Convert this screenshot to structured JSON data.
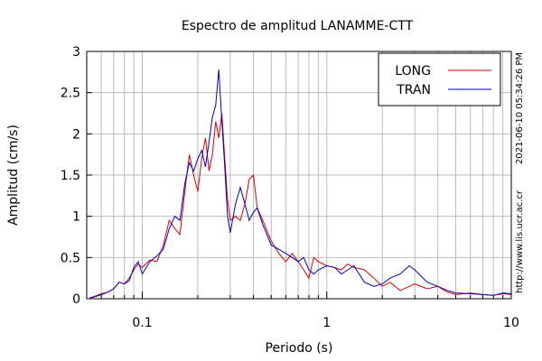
{
  "chart_data": {
    "type": "line",
    "title": "Espectro de amplitud LANAMME-CTT",
    "xlabel": "Periodo (s)",
    "ylabel": "Amplitud (cm/s)",
    "x_scale": "log",
    "xlim": [
      0.05,
      10
    ],
    "ylim": [
      0,
      3
    ],
    "grid": true,
    "legend_position": "top-right",
    "x_ticks": [
      {
        "value": 0.1,
        "label": "0.1"
      },
      {
        "value": 1,
        "label": "1"
      },
      {
        "value": 10,
        "label": "10"
      }
    ],
    "y_ticks": [
      {
        "value": 0,
        "label": "0"
      },
      {
        "value": 0.5,
        "label": "0.5"
      },
      {
        "value": 1,
        "label": "1"
      },
      {
        "value": 1.5,
        "label": "1.5"
      },
      {
        "value": 2,
        "label": "2"
      },
      {
        "value": 2.5,
        "label": "2.5"
      },
      {
        "value": 3,
        "label": "3"
      }
    ],
    "side_annotations": [
      "2021-06-10 05:34:26 PM",
      "http://www.lis.ucr.ac.cr"
    ],
    "series": [
      {
        "name": "LONG",
        "color": "#dd0000",
        "points": [
          [
            0.052,
            0.01
          ],
          [
            0.055,
            0.03
          ],
          [
            0.06,
            0.06
          ],
          [
            0.065,
            0.08
          ],
          [
            0.07,
            0.12
          ],
          [
            0.075,
            0.2
          ],
          [
            0.08,
            0.18
          ],
          [
            0.085,
            0.25
          ],
          [
            0.09,
            0.35
          ],
          [
            0.095,
            0.42
          ],
          [
            0.1,
            0.38
          ],
          [
            0.11,
            0.47
          ],
          [
            0.12,
            0.45
          ],
          [
            0.13,
            0.65
          ],
          [
            0.14,
            0.95
          ],
          [
            0.15,
            0.85
          ],
          [
            0.16,
            0.78
          ],
          [
            0.17,
            1.3
          ],
          [
            0.18,
            1.75
          ],
          [
            0.19,
            1.5
          ],
          [
            0.2,
            1.3
          ],
          [
            0.21,
            1.7
          ],
          [
            0.22,
            1.95
          ],
          [
            0.23,
            1.55
          ],
          [
            0.24,
            1.75
          ],
          [
            0.25,
            2.15
          ],
          [
            0.26,
            1.95
          ],
          [
            0.27,
            2.25
          ],
          [
            0.28,
            1.7
          ],
          [
            0.29,
            1.2
          ],
          [
            0.3,
            0.95
          ],
          [
            0.32,
            1.0
          ],
          [
            0.34,
            0.95
          ],
          [
            0.36,
            1.15
          ],
          [
            0.38,
            1.45
          ],
          [
            0.4,
            1.5
          ],
          [
            0.42,
            1.1
          ],
          [
            0.45,
            0.95
          ],
          [
            0.5,
            0.7
          ],
          [
            0.55,
            0.55
          ],
          [
            0.6,
            0.45
          ],
          [
            0.65,
            0.55
          ],
          [
            0.7,
            0.45
          ],
          [
            0.75,
            0.35
          ],
          [
            0.8,
            0.25
          ],
          [
            0.85,
            0.5
          ],
          [
            0.9,
            0.45
          ],
          [
            1.0,
            0.4
          ],
          [
            1.1,
            0.38
          ],
          [
            1.2,
            0.35
          ],
          [
            1.3,
            0.42
          ],
          [
            1.4,
            0.38
          ],
          [
            1.6,
            0.35
          ],
          [
            1.8,
            0.25
          ],
          [
            2.0,
            0.15
          ],
          [
            2.2,
            0.2
          ],
          [
            2.5,
            0.1
          ],
          [
            2.8,
            0.15
          ],
          [
            3.0,
            0.18
          ],
          [
            3.5,
            0.12
          ],
          [
            4.0,
            0.15
          ],
          [
            4.5,
            0.08
          ],
          [
            5.0,
            0.05
          ],
          [
            6.0,
            0.07
          ],
          [
            7.0,
            0.05
          ],
          [
            8.0,
            0.04
          ],
          [
            9.0,
            0.06
          ],
          [
            10.0,
            0.05
          ]
        ]
      },
      {
        "name": "TRAN",
        "color": "#0000cc",
        "points": [
          [
            0.052,
            0.01
          ],
          [
            0.055,
            0.02
          ],
          [
            0.06,
            0.05
          ],
          [
            0.065,
            0.08
          ],
          [
            0.07,
            0.12
          ],
          [
            0.075,
            0.2
          ],
          [
            0.08,
            0.18
          ],
          [
            0.085,
            0.22
          ],
          [
            0.09,
            0.38
          ],
          [
            0.095,
            0.45
          ],
          [
            0.1,
            0.3
          ],
          [
            0.11,
            0.45
          ],
          [
            0.12,
            0.52
          ],
          [
            0.13,
            0.6
          ],
          [
            0.14,
            0.85
          ],
          [
            0.15,
            1.0
          ],
          [
            0.16,
            0.95
          ],
          [
            0.17,
            1.4
          ],
          [
            0.18,
            1.65
          ],
          [
            0.19,
            1.55
          ],
          [
            0.2,
            1.7
          ],
          [
            0.21,
            1.8
          ],
          [
            0.22,
            1.6
          ],
          [
            0.23,
            1.9
          ],
          [
            0.24,
            2.2
          ],
          [
            0.25,
            2.35
          ],
          [
            0.26,
            2.78
          ],
          [
            0.27,
            2.15
          ],
          [
            0.28,
            1.6
          ],
          [
            0.29,
            1.0
          ],
          [
            0.3,
            0.8
          ],
          [
            0.32,
            1.15
          ],
          [
            0.34,
            1.35
          ],
          [
            0.36,
            1.15
          ],
          [
            0.38,
            0.95
          ],
          [
            0.4,
            1.05
          ],
          [
            0.42,
            1.1
          ],
          [
            0.45,
            0.9
          ],
          [
            0.5,
            0.65
          ],
          [
            0.55,
            0.6
          ],
          [
            0.6,
            0.55
          ],
          [
            0.65,
            0.5
          ],
          [
            0.7,
            0.45
          ],
          [
            0.75,
            0.5
          ],
          [
            0.8,
            0.35
          ],
          [
            0.85,
            0.3
          ],
          [
            0.9,
            0.35
          ],
          [
            1.0,
            0.4
          ],
          [
            1.1,
            0.38
          ],
          [
            1.2,
            0.3
          ],
          [
            1.3,
            0.35
          ],
          [
            1.4,
            0.4
          ],
          [
            1.6,
            0.2
          ],
          [
            1.8,
            0.15
          ],
          [
            2.0,
            0.18
          ],
          [
            2.2,
            0.25
          ],
          [
            2.5,
            0.3
          ],
          [
            2.8,
            0.4
          ],
          [
            3.0,
            0.35
          ],
          [
            3.5,
            0.2
          ],
          [
            4.0,
            0.15
          ],
          [
            4.5,
            0.1
          ],
          [
            5.0,
            0.07
          ],
          [
            6.0,
            0.06
          ],
          [
            7.0,
            0.05
          ],
          [
            8.0,
            0.04
          ],
          [
            9.0,
            0.07
          ],
          [
            10.0,
            0.06
          ]
        ]
      }
    ]
  }
}
